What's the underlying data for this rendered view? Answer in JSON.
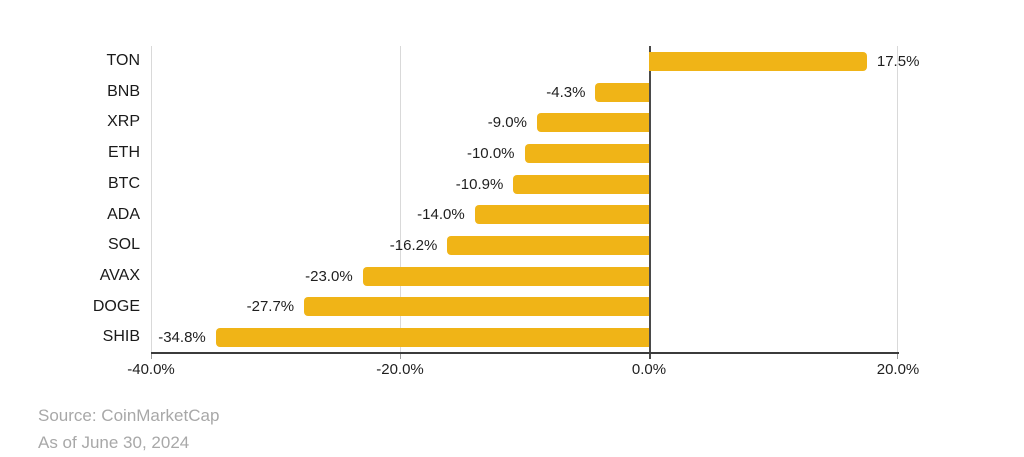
{
  "chart_data": {
    "type": "bar",
    "orientation": "horizontal",
    "title": "",
    "xlabel": "",
    "ylabel": "",
    "categories": [
      "TON",
      "BNB",
      "XRP",
      "ETH",
      "BTC",
      "ADA",
      "SOL",
      "AVAX",
      "DOGE",
      "SHIB"
    ],
    "values": [
      17.5,
      -4.3,
      -9.0,
      -10.0,
      -10.9,
      -14.0,
      -16.2,
      -23.0,
      -27.7,
      -34.8
    ],
    "value_labels": [
      "17.5%",
      "-4.3%",
      "-9.0%",
      "-10.0%",
      "-10.9%",
      "-14.0%",
      "-16.2%",
      "-23.0%",
      "-27.7%",
      "-34.8%"
    ],
    "xlim": [
      -40,
      20
    ],
    "x_ticks": [
      -40,
      -20,
      0,
      20
    ],
    "x_tick_labels": [
      "-40.0%",
      "-20.0%",
      "0.0%",
      "20.0%"
    ],
    "grid": true,
    "legend": "none",
    "bar_color": "#F0B417",
    "zero_line_color": "#4a4a4a",
    "gridline_color": "#d9d9d9",
    "axis_line_color": "#3b3b3b",
    "label_color": "#1f1f1f",
    "footer_color": "#a8a8a8"
  },
  "footer": {
    "source": "Source: CoinMarketCap",
    "as_of": "As of June 30, 2024"
  }
}
